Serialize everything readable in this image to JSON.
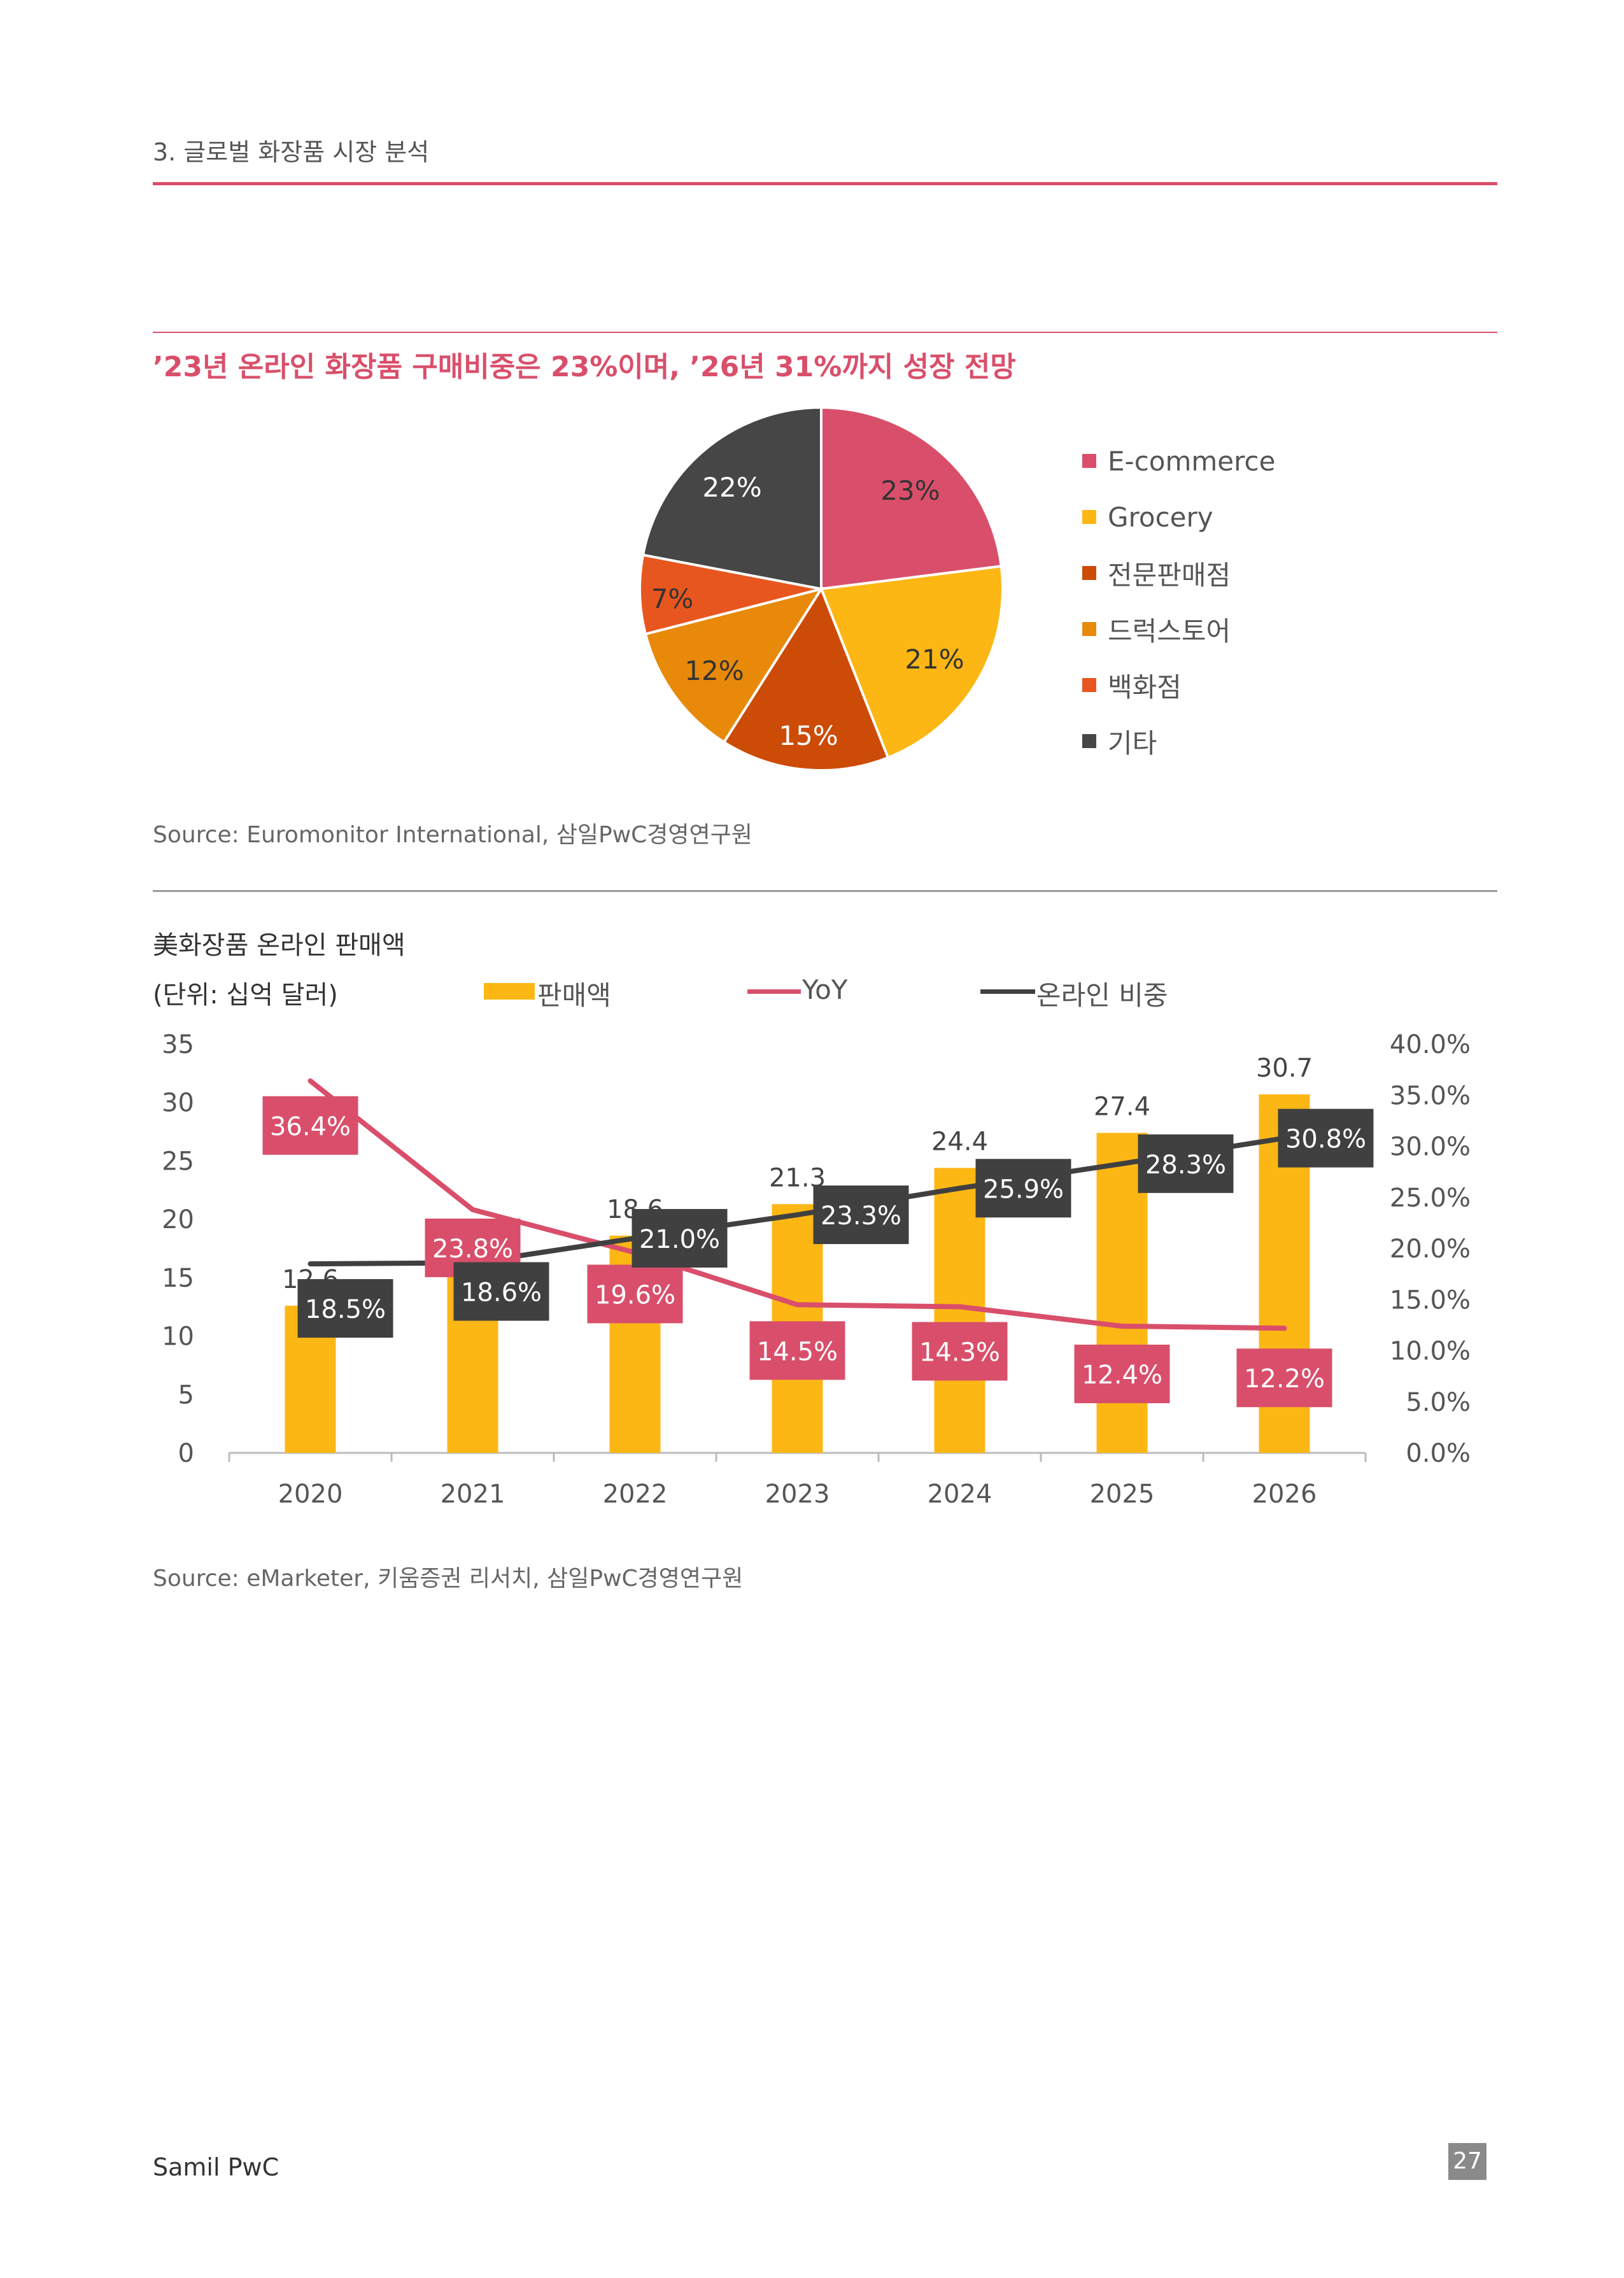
{
  "header": {
    "section": "3. 글로벌 화장품 시장 분석"
  },
  "pie": {
    "headline": "’23년 온라인 화장품 구매비중은 23%이며, ’26년 31%까지 성장 전망",
    "source": "Source: Euromonitor International, 삼일PwC경영연구원",
    "legend": [
      "E-commerce",
      "Grocery",
      "전문판매점",
      "드럭스토어",
      "백화점",
      "기타"
    ],
    "colors": {
      "accent": "#d94f6b",
      "grocery": "#fdb714",
      "specialty": "#cc4b06",
      "drugstore": "#e8890a",
      "department": "#e8561f",
      "other": "#464646"
    }
  },
  "bar_chart": {
    "title": "美화장품 온라인 판매액",
    "unit": "(단위: 십억 달러)",
    "legend": {
      "sales": "판매액",
      "yoy": "YoY",
      "share": "온라인 비중"
    },
    "left_ticks": [
      "35",
      "30",
      "25",
      "20",
      "15",
      "10",
      "5",
      "0"
    ],
    "right_ticks": [
      "40.0%",
      "35.0%",
      "30.0%",
      "25.0%",
      "20.0%",
      "15.0%",
      "10.0%",
      "5.0%",
      "0.0%"
    ],
    "source": "Source: eMarketer, 키움증권 리서치, 삼일PwC경영연구원",
    "colors": {
      "bar": "#fdb714",
      "yoy": "#d94f6b",
      "share": "#404040"
    }
  },
  "chart_data": [
    {
      "type": "pie",
      "labels": [
        "E-commerce",
        "Grocery",
        "전문판매점",
        "드럭스토어",
        "백화점",
        "기타"
      ],
      "values": [
        23,
        21,
        15,
        12,
        7,
        22
      ],
      "value_labels": [
        "23%",
        "21%",
        "15%",
        "12%",
        "7%",
        "22%"
      ],
      "legend_position": "right"
    },
    {
      "type": "bar",
      "categories": [
        "2020",
        "2021",
        "2022",
        "2023",
        "2024",
        "2025",
        "2026"
      ],
      "series": [
        {
          "name": "판매액",
          "type": "bar",
          "axis": "left",
          "values": [
            12.6,
            15.6,
            18.6,
            21.3,
            24.4,
            27.4,
            30.7
          ],
          "labels": [
            "12.6",
            "15.6",
            "18.6",
            "21.3",
            "24.4",
            "27.4",
            "30.7"
          ]
        },
        {
          "name": "YoY",
          "type": "line",
          "axis": "right",
          "values": [
            36.4,
            23.8,
            19.6,
            14.5,
            14.3,
            12.4,
            12.2
          ],
          "labels": [
            "36.4%",
            "23.8%",
            "19.6%",
            "14.5%",
            "14.3%",
            "12.4%",
            "12.2%"
          ]
        },
        {
          "name": "온라인 비중",
          "type": "line",
          "axis": "right",
          "values": [
            18.5,
            18.6,
            21.0,
            23.3,
            25.9,
            28.3,
            30.8
          ],
          "labels": [
            "18.5%",
            "18.6%",
            "21.0%",
            "23.3%",
            "25.9%",
            "28.3%",
            "30.8%"
          ]
        }
      ],
      "ylim_left": [
        0,
        35
      ],
      "ylim_right": [
        0,
        40
      ],
      "legend_position": "top"
    }
  ],
  "footer": {
    "brand": "Samil PwC",
    "page": "27"
  }
}
